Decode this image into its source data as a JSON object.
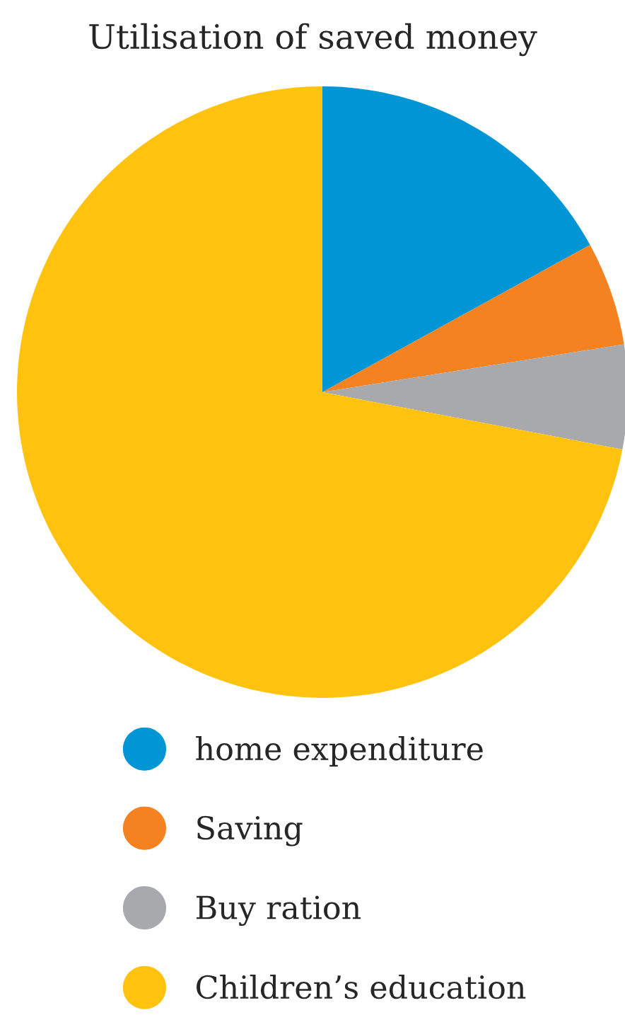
{
  "chart_data": {
    "type": "pie",
    "title": "Utilisation of saved money",
    "categories": [
      "home expenditure",
      "Saving",
      "Buy ration",
      "Children’s education"
    ],
    "values": [
      17,
      5.5,
      5.5,
      72
    ],
    "colors": [
      "#0096d6",
      "#f58220",
      "#a7a9ac",
      "#ffc20e"
    ],
    "legend": "bottom"
  }
}
